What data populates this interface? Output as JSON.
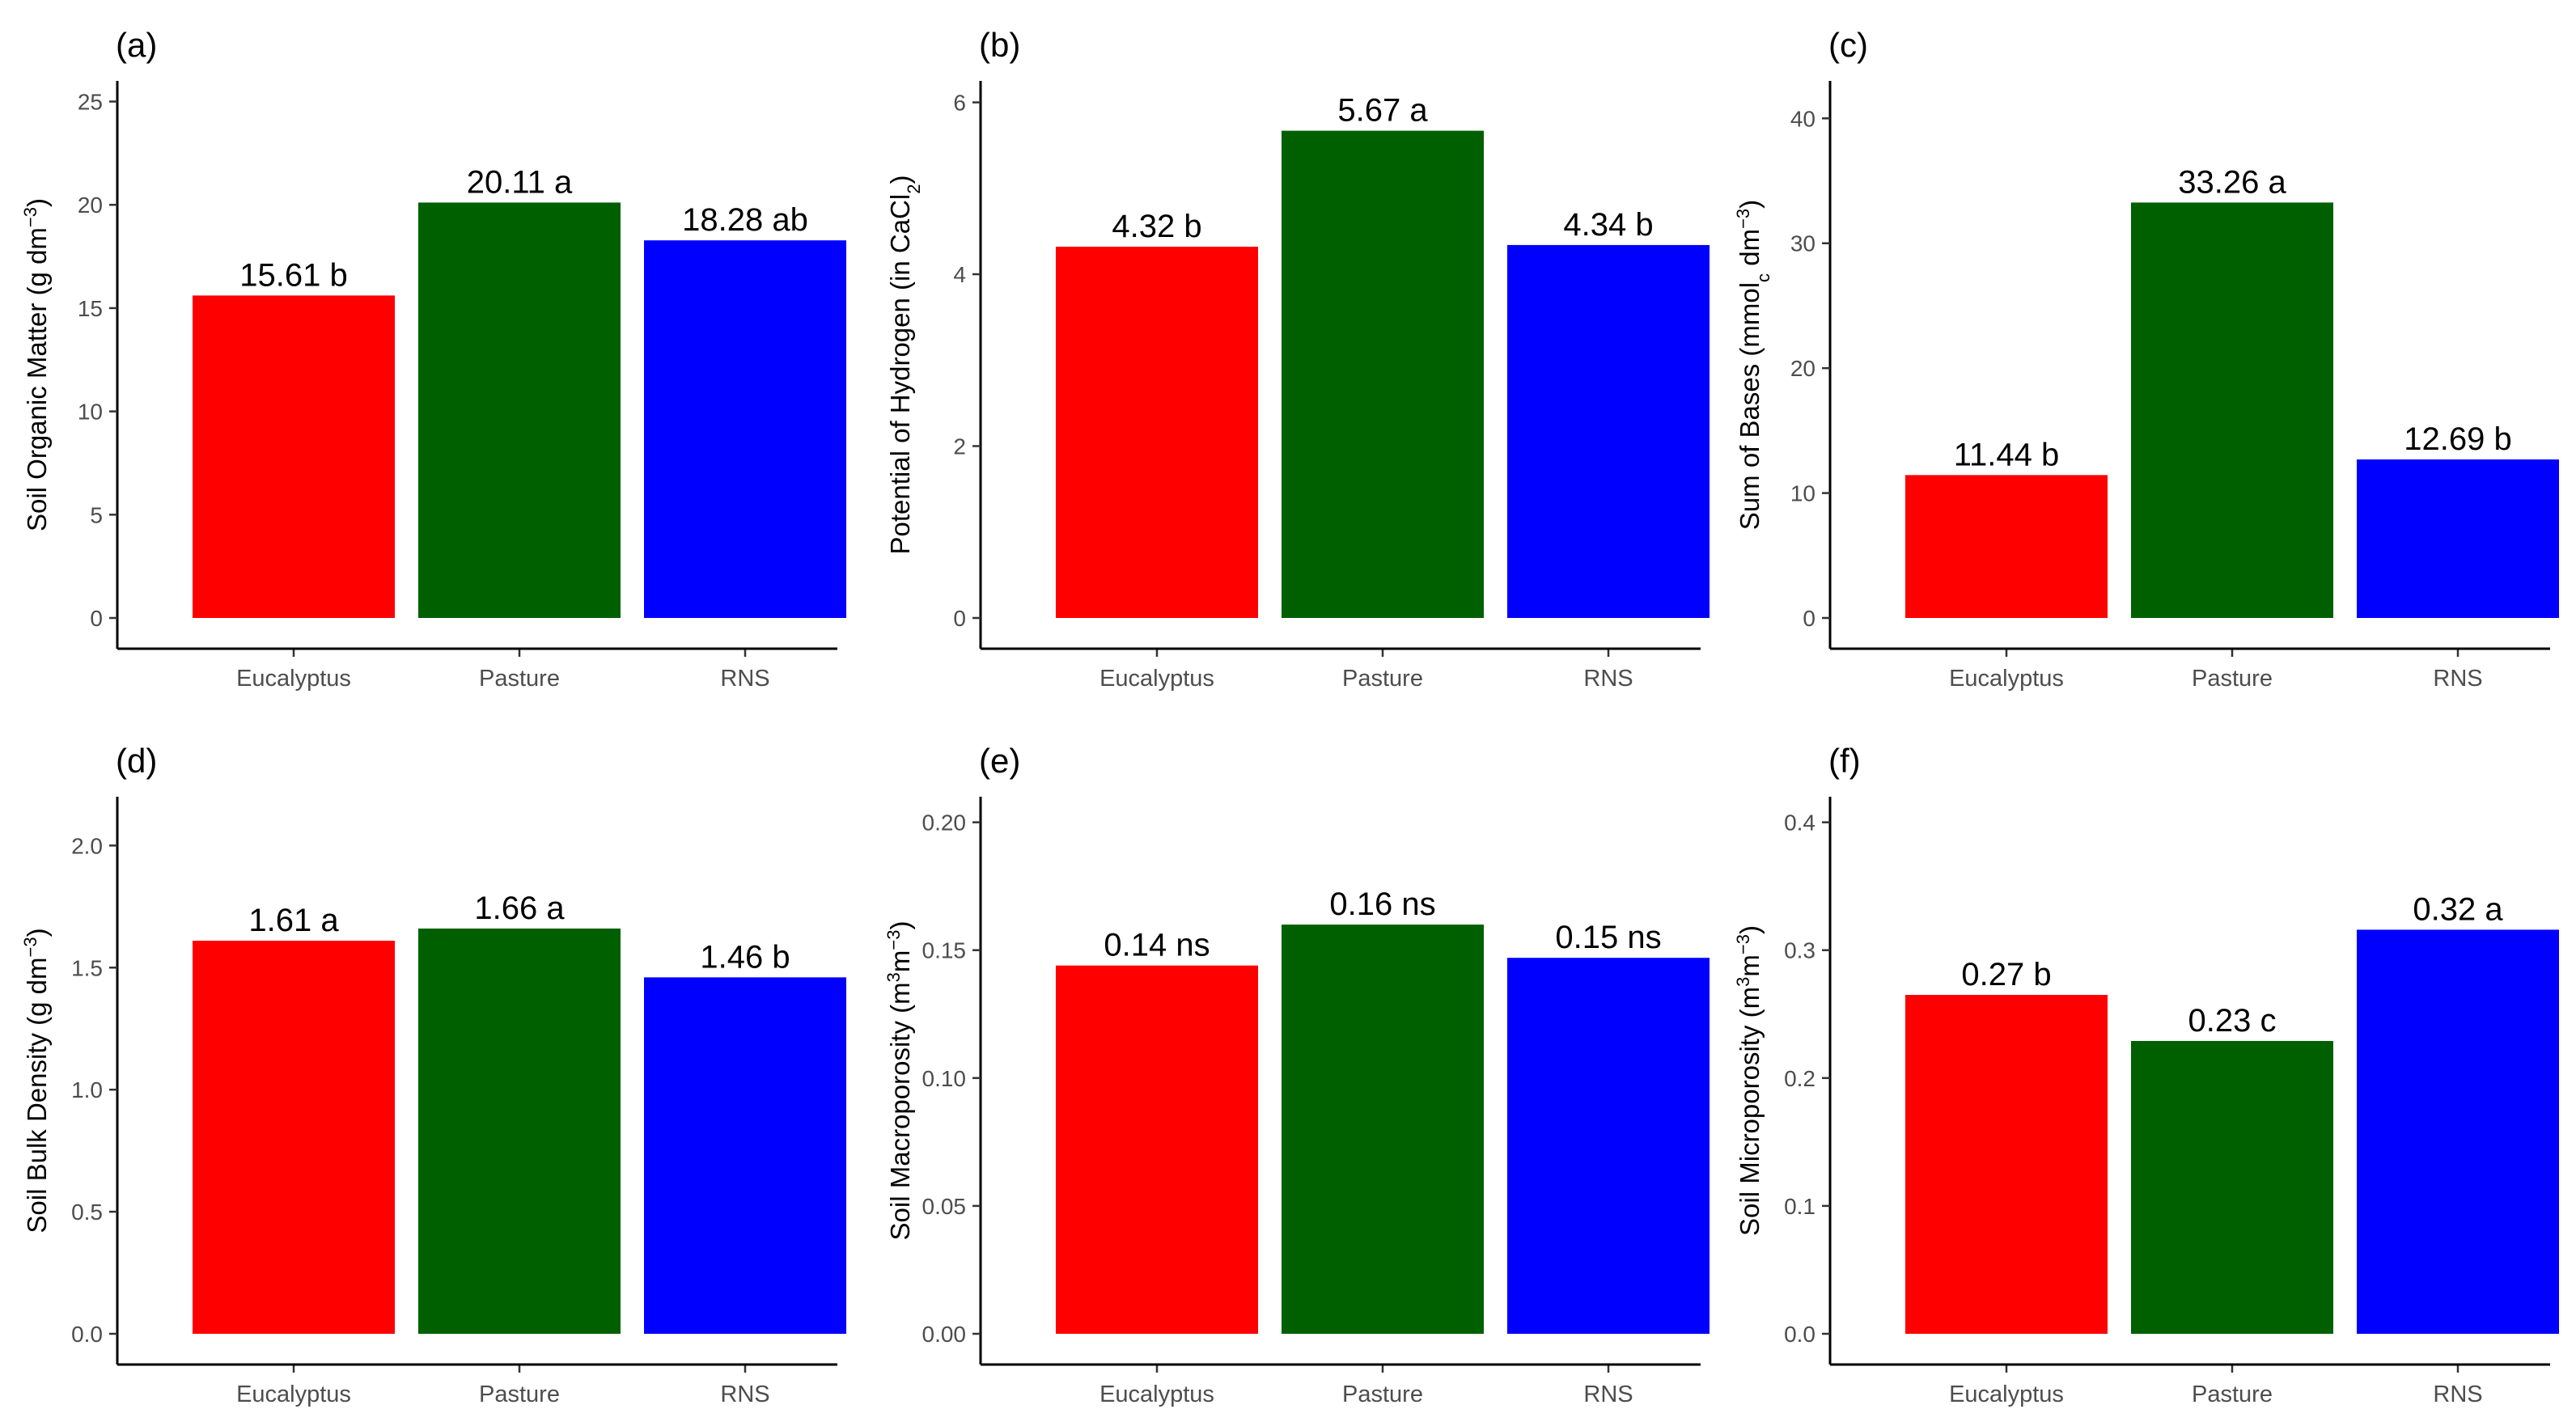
{
  "colors": {
    "Eucalyptus": "#ff0000",
    "Pasture": "#006000",
    "RNS": "#0000ff"
  },
  "chart_data": [
    {
      "type": "bar",
      "panel": "(a)",
      "ylabel_parts": [
        {
          "t": "Soil Organic Matter (g dm"
        },
        {
          "t": "−3",
          "sup": true
        },
        {
          "t": ")"
        }
      ],
      "categories": [
        "Eucalyptus",
        "Pasture",
        "RNS"
      ],
      "values": [
        15.61,
        20.11,
        18.28
      ],
      "bar_labels": [
        "15.61 b",
        "20.11 a",
        "18.28 ab"
      ],
      "ylim": [
        0,
        26
      ],
      "yticks": [
        0,
        5,
        10,
        15,
        20,
        25
      ],
      "ytick_labels": [
        "0",
        "5",
        "10",
        "15",
        "20",
        "25"
      ]
    },
    {
      "type": "bar",
      "panel": "(b)",
      "ylabel_parts": [
        {
          "t": "Potential of Hydrogen (in CaCl"
        },
        {
          "t": "2",
          "sub": true
        },
        {
          "t": ")"
        }
      ],
      "categories": [
        "Eucalyptus",
        "Pasture",
        "RNS"
      ],
      "values": [
        4.32,
        5.67,
        4.34
      ],
      "bar_labels": [
        "4.32 b",
        "5.67 a",
        "4.34 b"
      ],
      "ylim": [
        0,
        6.25
      ],
      "yticks": [
        0,
        2,
        4,
        6
      ],
      "ytick_labels": [
        "0",
        "2",
        "4",
        "6"
      ]
    },
    {
      "type": "bar",
      "panel": "(c)",
      "ylabel_parts": [
        {
          "t": "Sum of Bases  (mmol"
        },
        {
          "t": "c",
          "sub": true
        },
        {
          "t": " dm"
        },
        {
          "t": "−3",
          "sup": true
        },
        {
          "t": ")"
        }
      ],
      "categories": [
        "Eucalyptus",
        "Pasture",
        "RNS"
      ],
      "values": [
        11.44,
        33.26,
        12.69
      ],
      "bar_labels": [
        "11.44 b",
        "33.26 a",
        "12.69 b"
      ],
      "ylim": [
        0,
        43
      ],
      "yticks": [
        0,
        10,
        20,
        30,
        40
      ],
      "ytick_labels": [
        "0",
        "10",
        "20",
        "30",
        "40"
      ]
    },
    {
      "type": "bar",
      "panel": "(d)",
      "ylabel_parts": [
        {
          "t": "Soil Bulk Density (g dm"
        },
        {
          "t": "−3",
          "sup": true
        },
        {
          "t": ")"
        }
      ],
      "categories": [
        "Eucalyptus",
        "Pasture",
        "RNS"
      ],
      "values": [
        1.61,
        1.66,
        1.46
      ],
      "bar_labels": [
        "1.61 a",
        "1.66 a",
        "1.46 b"
      ],
      "ylim": [
        0,
        2.2
      ],
      "yticks": [
        0,
        0.5,
        1.0,
        1.5,
        2.0
      ],
      "ytick_labels": [
        "0.0",
        "0.5",
        "1.0",
        "1.5",
        "2.0"
      ]
    },
    {
      "type": "bar",
      "panel": "(e)",
      "ylabel_parts": [
        {
          "t": "Soil Macroporosity (m"
        },
        {
          "t": "3",
          "sup": true
        },
        {
          "t": "m"
        },
        {
          "t": "−3",
          "sup": true
        },
        {
          "t": ")"
        }
      ],
      "categories": [
        "Eucalyptus",
        "Pasture",
        "RNS"
      ],
      "values": [
        0.144,
        0.16,
        0.147
      ],
      "bar_labels": [
        "0.14 ns",
        "0.16 ns",
        "0.15 ns"
      ],
      "ylim": [
        0,
        0.21
      ],
      "yticks": [
        0,
        0.05,
        0.1,
        0.15,
        0.2
      ],
      "ytick_labels": [
        "0.00",
        "0.05",
        "0.10",
        "0.15",
        "0.20"
      ]
    },
    {
      "type": "bar",
      "panel": "(f)",
      "ylabel_parts": [
        {
          "t": "Soil Microporosity (m"
        },
        {
          "t": "3",
          "sup": true
        },
        {
          "t": "m"
        },
        {
          "t": "−3",
          "sup": true
        },
        {
          "t": ")"
        }
      ],
      "categories": [
        "Eucalyptus",
        "Pasture",
        "RNS"
      ],
      "values": [
        0.265,
        0.229,
        0.316
      ],
      "bar_labels": [
        "0.27 b",
        "0.23 c",
        "0.32 a"
      ],
      "ylim": [
        0,
        0.42
      ],
      "yticks": [
        0,
        0.1,
        0.2,
        0.3,
        0.4
      ],
      "ytick_labels": [
        "0.0",
        "0.1",
        "0.2",
        "0.3",
        "0.4"
      ]
    }
  ]
}
